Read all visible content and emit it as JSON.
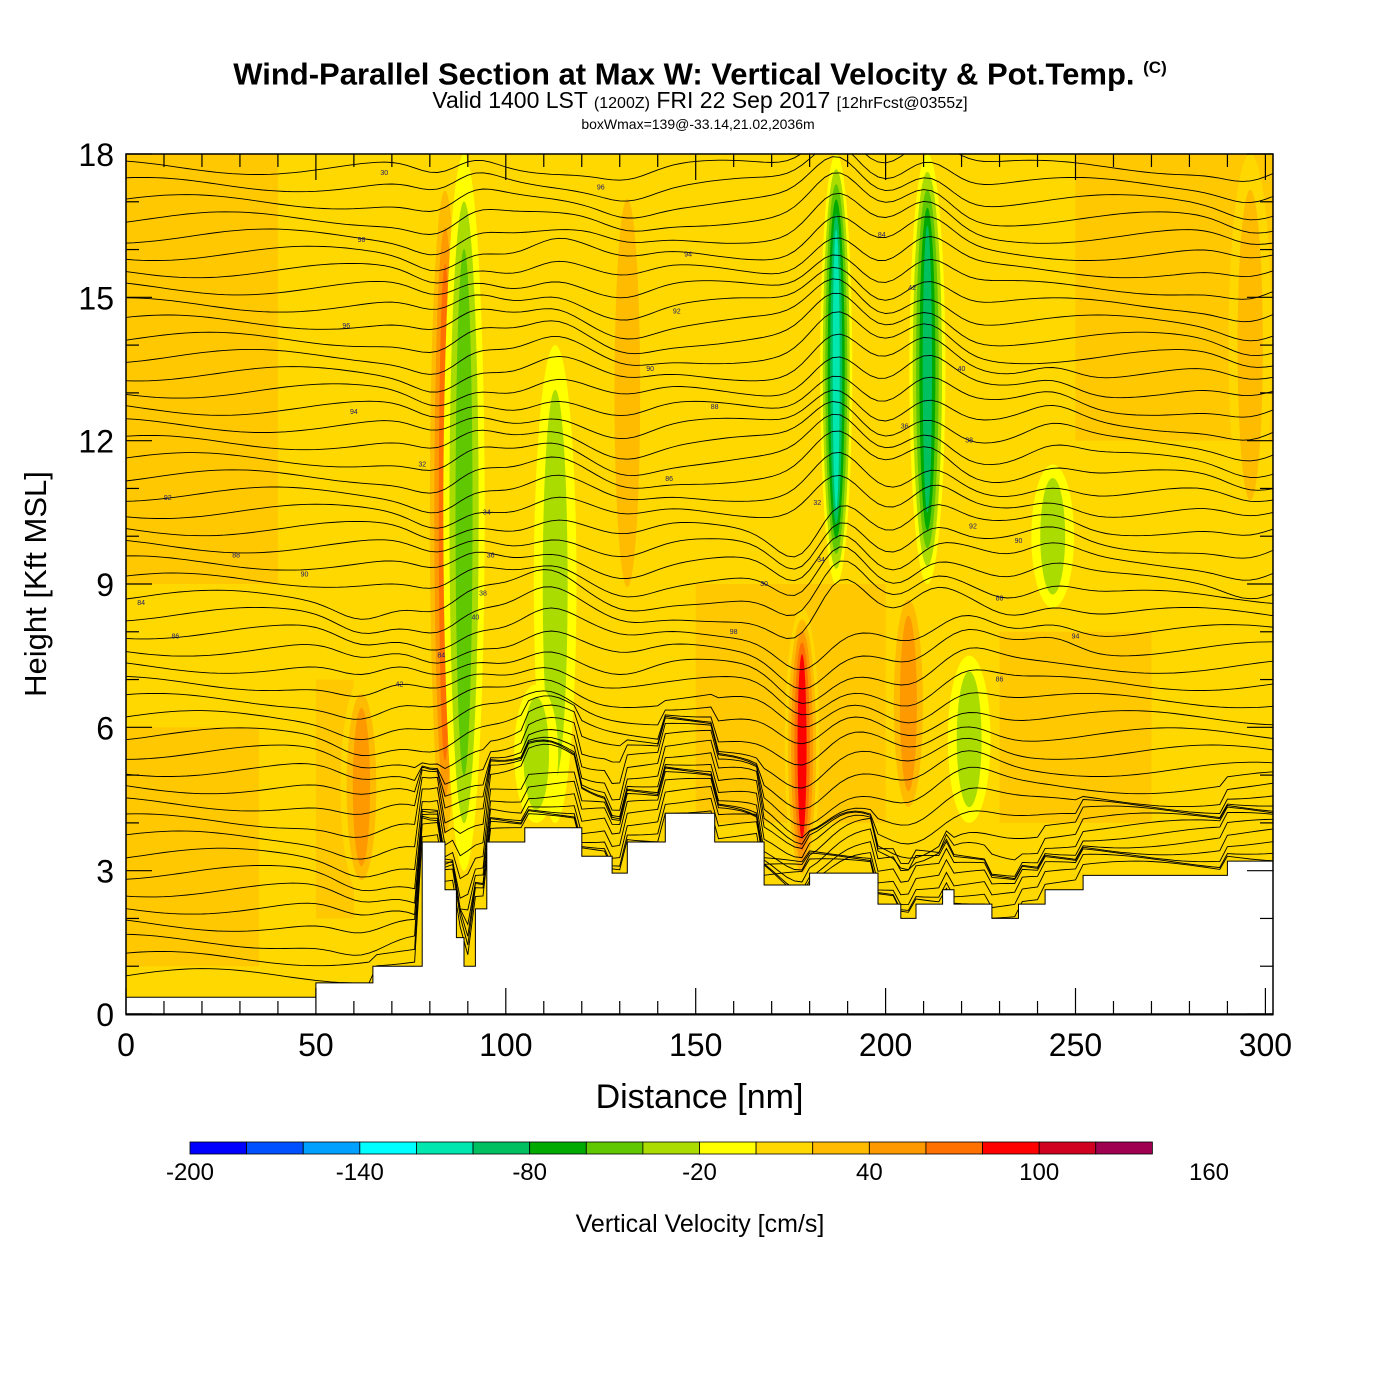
{
  "header": {
    "title_main": "Wind-Parallel Section at Max W: Vertical Velocity & Pot.Temp.",
    "copyright": "(C)",
    "valid_prefix": "Valid 1400 LST",
    "valid_utc": "(1200Z)",
    "valid_date": "FRI 22 Sep 2017",
    "forecast": "[12hrFcst@0355z]",
    "box_info": "boxWmax=139@-33.14,21.02,2036m"
  },
  "chart_data": {
    "type": "heatmap",
    "title": "Wind-Parallel Section at Max W: Vertical Velocity & Pot.Temp.",
    "xlabel": "Distance [nm]",
    "ylabel": "Height [Kft MSL]",
    "xlim": [
      0,
      302
    ],
    "ylim": [
      0,
      18
    ],
    "xticks": [
      0,
      50,
      100,
      150,
      200,
      250,
      300
    ],
    "yticks": [
      0,
      3,
      6,
      9,
      12,
      15,
      18
    ],
    "colorbar": {
      "label": "Vertical Velocity [cm/s]",
      "levels": [
        -200,
        -180,
        -160,
        -140,
        -120,
        -100,
        -80,
        -60,
        -40,
        -20,
        0,
        20,
        40,
        60,
        80,
        100,
        120,
        140,
        160
      ],
      "tick_labels": [
        "-200",
        "-140",
        "-80",
        "-20",
        "40",
        "100",
        "160"
      ],
      "colors": [
        "#0000ff",
        "#0050ff",
        "#00a0ff",
        "#00ffff",
        "#00e8b0",
        "#00c060",
        "#00aa00",
        "#60c800",
        "#aadc00",
        "#ffff00",
        "#ffd800",
        "#ffbb00",
        "#ff9900",
        "#ff7000",
        "#ff0000",
        "#d00020",
        "#a00050"
      ]
    },
    "terrain_kft": [
      [
        0,
        0.35
      ],
      [
        50,
        0.35
      ],
      [
        50,
        0.65
      ],
      [
        65,
        0.65
      ],
      [
        65,
        1.0
      ],
      [
        78,
        1.0
      ],
      [
        78,
        3.6
      ],
      [
        84,
        3.6
      ],
      [
        84,
        2.6
      ],
      [
        87,
        2.6
      ],
      [
        87,
        1.6
      ],
      [
        89,
        1.6
      ],
      [
        89,
        1.0
      ],
      [
        92,
        1.0
      ],
      [
        92,
        2.2
      ],
      [
        95,
        2.2
      ],
      [
        95,
        3.6
      ],
      [
        105,
        3.6
      ],
      [
        105,
        3.9
      ],
      [
        120,
        3.9
      ],
      [
        120,
        3.3
      ],
      [
        128,
        3.3
      ],
      [
        128,
        2.95
      ],
      [
        132,
        2.95
      ],
      [
        132,
        3.6
      ],
      [
        142,
        3.6
      ],
      [
        142,
        4.2
      ],
      [
        155,
        4.2
      ],
      [
        155,
        3.6
      ],
      [
        168,
        3.6
      ],
      [
        168,
        2.7
      ],
      [
        180,
        2.7
      ],
      [
        180,
        2.95
      ],
      [
        198,
        2.95
      ],
      [
        198,
        2.3
      ],
      [
        204,
        2.3
      ],
      [
        204,
        2.0
      ],
      [
        208,
        2.0
      ],
      [
        208,
        2.3
      ],
      [
        215,
        2.3
      ],
      [
        215,
        2.6
      ],
      [
        218,
        2.6
      ],
      [
        218,
        2.3
      ],
      [
        228,
        2.3
      ],
      [
        228,
        2.0
      ],
      [
        235,
        2.0
      ],
      [
        235,
        2.3
      ],
      [
        242,
        2.3
      ],
      [
        242,
        2.6
      ],
      [
        252,
        2.6
      ],
      [
        252,
        2.9
      ],
      [
        290,
        2.9
      ],
      [
        290,
        3.2
      ],
      [
        302,
        3.2
      ]
    ],
    "vertical_velocity_cells": [
      {
        "x_center": 62,
        "z_range": [
          2.5,
          7.0
        ],
        "w": 45
      },
      {
        "x_center": 84,
        "z_range": [
          3.0,
          18
        ],
        "w": 65
      },
      {
        "x_center": 89,
        "z_range": [
          3.0,
          18
        ],
        "w": -50
      },
      {
        "x_center": 113,
        "z_range": [
          4.0,
          14.0
        ],
        "w": -40
      },
      {
        "x_center": 108,
        "z_range": [
          4.0,
          6.9
        ],
        "w": -30
      },
      {
        "x_center": 132,
        "z_range": [
          8.0,
          18
        ],
        "w": 30
      },
      {
        "x_center": 178,
        "z_range": [
          2.7,
          8.5
        ],
        "w": 100
      },
      {
        "x_center": 187,
        "z_range": [
          9.0,
          18
        ],
        "w": -120
      },
      {
        "x_center": 206,
        "z_range": [
          4.0,
          9.0
        ],
        "w": 50
      },
      {
        "x_center": 211,
        "z_range": [
          9.0,
          18
        ],
        "w": -90
      },
      {
        "x_center": 222,
        "z_range": [
          4.0,
          7.5
        ],
        "w": -40
      },
      {
        "x_center": 244,
        "z_range": [
          8.5,
          11.5
        ],
        "w": -40
      },
      {
        "x_center": 296,
        "z_range": [
          10.0,
          18
        ],
        "w": 35
      }
    ],
    "theta_contour_labels": [
      "84",
      "86",
      "88",
      "90",
      "92",
      "94",
      "96",
      "98",
      "30",
      "32",
      "34",
      "36",
      "38",
      "40",
      "42"
    ]
  },
  "colorbar_ui": {
    "label": "Vertical Velocity [cm/s]"
  }
}
